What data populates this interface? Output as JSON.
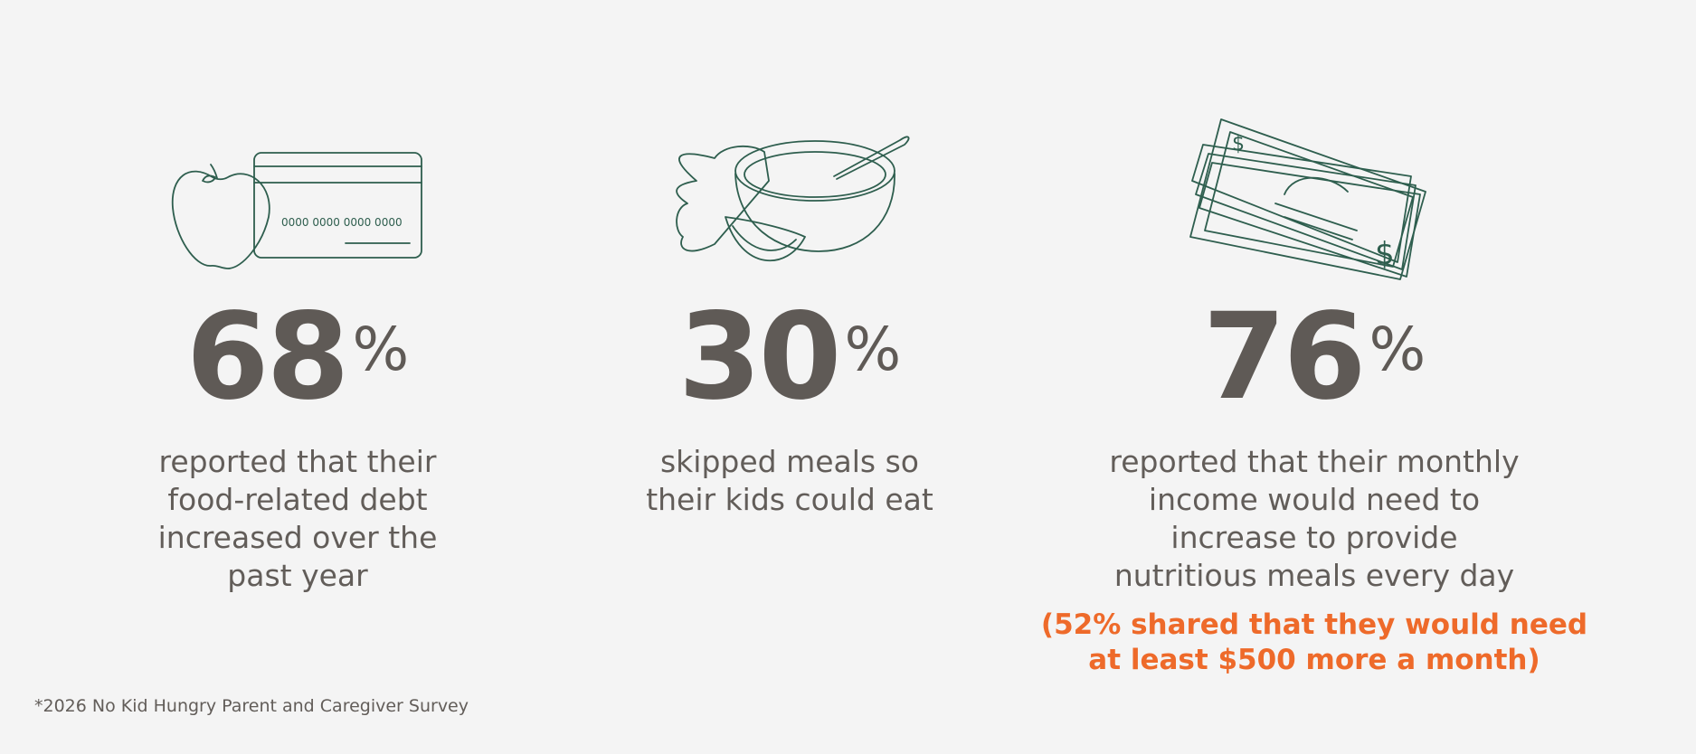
{
  "stats": [
    {
      "value": 68,
      "unit": "%",
      "lines": [
        "reported that their",
        "food-related debt",
        "increased over the",
        "past year"
      ]
    },
    {
      "value": 30,
      "unit": "%",
      "lines": [
        "skipped meals so",
        "their kids could eat"
      ]
    },
    {
      "value": 76,
      "unit": "%",
      "lines": [
        "reported that their monthly",
        "income would need to",
        "increase to provide",
        "nutritious meals every day"
      ],
      "note": [
        "(52% shared that they would need",
        "at least $500 more a month)"
      ]
    }
  ],
  "icon_text": {
    "card_number": "0000  0000  0000  0000"
  },
  "footnote": "*2026 No Kid Hungry Parent and Caregiver Survey"
}
